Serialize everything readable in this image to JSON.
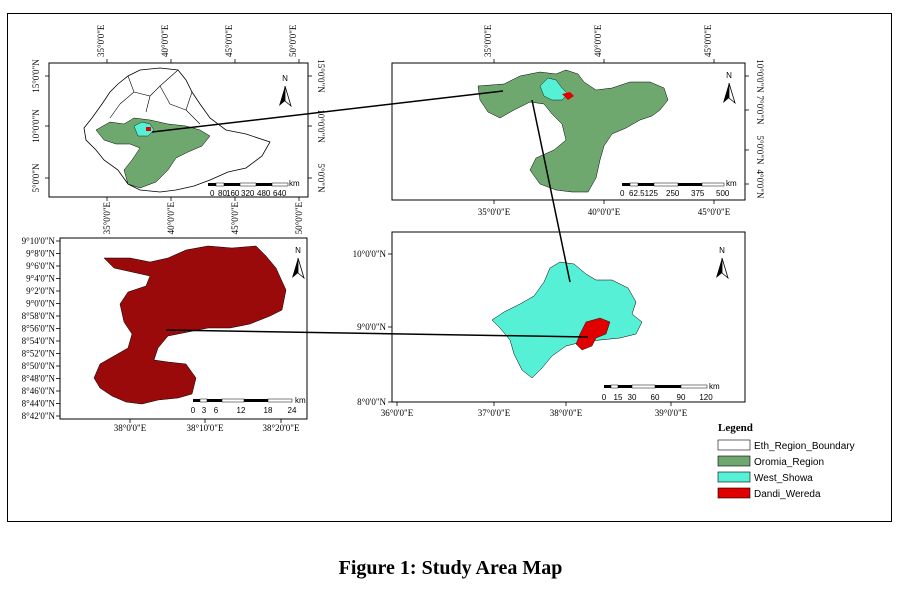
{
  "caption": "Figure 1: Study Area Map",
  "colors": {
    "eth_boundary": "#ffffff",
    "oromia": "#6fa86f",
    "west_showa": "#55f0d6",
    "dandi": "#e00000",
    "dandi_zoom": "#9b0a0a"
  },
  "north_label": "N",
  "scale_unit": "km",
  "maps": {
    "ethiopia": {
      "top_ticks": [
        "35°0'0\"E",
        "40°0'0\"E",
        "45°0'0\"E",
        "50°0'0\"E"
      ],
      "bottom_ticks": [
        "35°0'0\"E",
        "40°0'0\"E",
        "45°0'0\"E",
        "50°0'0\"E"
      ],
      "left_ticks": [
        "15°0'0\"N",
        "10°0'0\"N",
        "5°0'0\"N"
      ],
      "right_ticks": [
        "15°0'0\"N",
        "10°0'0\"N",
        "5°0'0\"N"
      ],
      "scale_labels": [
        "0",
        "80",
        "160",
        "320",
        "480",
        "640"
      ]
    },
    "oromia": {
      "top_ticks": [
        "35°0'0\"E",
        "40°0'0\"E",
        "45°0'0\"E"
      ],
      "bottom_ticks": [
        "35°0'0\"E",
        "40°0'0\"E",
        "45°0'0\"E"
      ],
      "right_ticks": [
        "10°0'0\"N",
        "7°0'0\"N",
        "5°0'0\"N",
        "4°0'0\"N"
      ],
      "scale_labels": [
        "0",
        "62.5125",
        "250",
        "375",
        "500"
      ]
    },
    "dandi": {
      "left_ticks": [
        "9°10'0\"N",
        "9°8'0\"N",
        "9°6'0\"N",
        "9°4'0\"N",
        "9°2'0\"N",
        "9°0'0\"N",
        "8°58'0\"N",
        "8°56'0\"N",
        "8°54'0\"N",
        "8°52'0\"N",
        "8°50'0\"N",
        "8°48'0\"N",
        "8°46'0\"N",
        "8°44'0\"N",
        "8°42'0\"N"
      ],
      "bottom_ticks": [
        "38°0'0\"E",
        "38°10'0\"E",
        "38°20'0\"E"
      ],
      "scale_labels": [
        "0",
        "3",
        "6",
        "12",
        "18",
        "24"
      ]
    },
    "westshowa": {
      "left_ticks": [
        "10°0'0\"N",
        "9°0'0\"N",
        "8°0'0\"N"
      ],
      "bottom_ticks": [
        "36°0'0\"E",
        "37°0'0\"E",
        "38°0'0\"E",
        "39°0'0\"E"
      ],
      "scale_labels": [
        "0",
        "15",
        "30",
        "60",
        "90",
        "120"
      ]
    }
  },
  "legend": {
    "title": "Legend",
    "items": [
      {
        "label": "Eth_Region_Boundary",
        "color": "#ffffff"
      },
      {
        "label": "Oromia_Region",
        "color": "#6fa86f"
      },
      {
        "label": "West_Showa",
        "color": "#55f0d6"
      },
      {
        "label": "Dandi_Wereda",
        "color": "#e00000"
      }
    ]
  }
}
